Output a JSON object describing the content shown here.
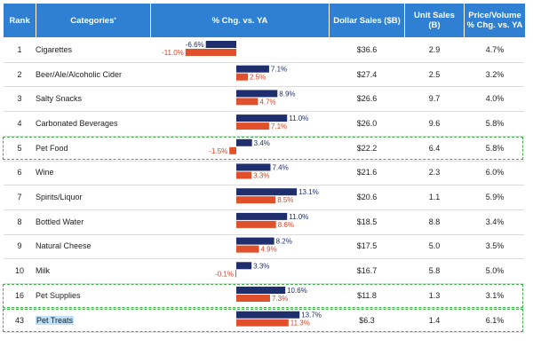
{
  "header": {
    "rank": "Rank",
    "categories": "Categories",
    "categories_mark": "*",
    "pct_chg": "% Chg. vs. YA",
    "dollar_sales": "Dollar Sales ($B)",
    "unit_sales_1": "Unit Sales",
    "unit_sales_2": "(B)",
    "price_volume_1": "Price/Volume",
    "price_volume_2": "% Chg. vs. YA"
  },
  "colors": {
    "header_bg": "#2f7fd3",
    "dollar_bar": "#1f2f6e",
    "unit_bar": "#e0502a",
    "dollar_label": "#1f2f6e",
    "unit_label": "#d2452a",
    "highlight": "#3fae49"
  },
  "rows": [
    {
      "rank": "1",
      "category": "Cigarettes",
      "dollar_sales": "$36.6",
      "unit_sales": "2.9",
      "price_volume": "4.7%"
    },
    {
      "rank": "2",
      "category": "Beer/Ale/Alcoholic Cider",
      "dollar_sales": "$27.4",
      "unit_sales": "2.5",
      "price_volume": "3.2%"
    },
    {
      "rank": "3",
      "category": "Salty Snacks",
      "dollar_sales": "$26.6",
      "unit_sales": "9.7",
      "price_volume": "4.0%"
    },
    {
      "rank": "4",
      "category": "Carbonated Beverages",
      "dollar_sales": "$26.0",
      "unit_sales": "9.6",
      "price_volume": "5.8%"
    },
    {
      "rank": "5",
      "category": "Pet Food",
      "dollar_sales": "$22.2",
      "unit_sales": "6.4",
      "price_volume": "5.8%"
    },
    {
      "rank": "6",
      "category": "Wine",
      "dollar_sales": "$21.6",
      "unit_sales": "2.3",
      "price_volume": "6.0%"
    },
    {
      "rank": "7",
      "category": "Spirits/Liquor",
      "dollar_sales": "$20.6",
      "unit_sales": "1.1",
      "price_volume": "5.9%"
    },
    {
      "rank": "8",
      "category": "Bottled Water",
      "dollar_sales": "$18.5",
      "unit_sales": "8.8",
      "price_volume": "3.4%"
    },
    {
      "rank": "9",
      "category": "Natural Cheese",
      "dollar_sales": "$17.5",
      "unit_sales": "5.0",
      "price_volume": "3.5%"
    },
    {
      "rank": "10",
      "category": "Milk",
      "dollar_sales": "$16.7",
      "unit_sales": "5.8",
      "price_volume": "5.0%"
    },
    {
      "rank": "16",
      "category": "Pet Supplies",
      "dollar_sales": "$11.8",
      "unit_sales": "1.3",
      "price_volume": "3.1%"
    },
    {
      "rank": "43",
      "category": "Pet Treats",
      "dollar_sales": "$6.3",
      "unit_sales": "1.4",
      "price_volume": "6.1%"
    }
  ],
  "highlighted_ranks": [
    "5",
    "16",
    "43"
  ],
  "chart_data": {
    "type": "bar",
    "orientation": "horizontal",
    "title": "% Chg. vs. YA",
    "categories": [
      "Cigarettes",
      "Beer/Ale/Alcoholic Cider",
      "Salty Snacks",
      "Carbonated Beverages",
      "Pet Food",
      "Wine",
      "Spirits/Liquor",
      "Bottled Water",
      "Natural Cheese",
      "Milk",
      "Pet Supplies",
      "Pet Treats"
    ],
    "series": [
      {
        "name": "Dollar Sales % Chg.",
        "values": [
          -6.6,
          7.1,
          8.9,
          11.0,
          3.4,
          7.4,
          13.1,
          11.0,
          8.2,
          3.3,
          10.6,
          13.7
        ]
      },
      {
        "name": "Unit Sales % Chg.",
        "values": [
          -11.0,
          2.5,
          4.7,
          7.1,
          -1.5,
          3.3,
          8.5,
          8.6,
          4.9,
          -0.1,
          7.3,
          11.3
        ]
      }
    ],
    "labels": {
      "dollar": [
        "-6.6%",
        "7.1%",
        "8.9%",
        "11.0%",
        "3.4%",
        "7.4%",
        "13.1%",
        "11.0%",
        "8.2%",
        "3.3%",
        "10.6%",
        "13.7%"
      ],
      "unit": [
        "-11.0%",
        "2.5%",
        "4.7%",
        "7.1%",
        "-1.5%",
        "3.3%",
        "8.5%",
        "8.6%",
        "4.9%",
        "-0.1%",
        "7.3%",
        "11.3%"
      ]
    },
    "xlim": [
      -12,
      14
    ]
  }
}
